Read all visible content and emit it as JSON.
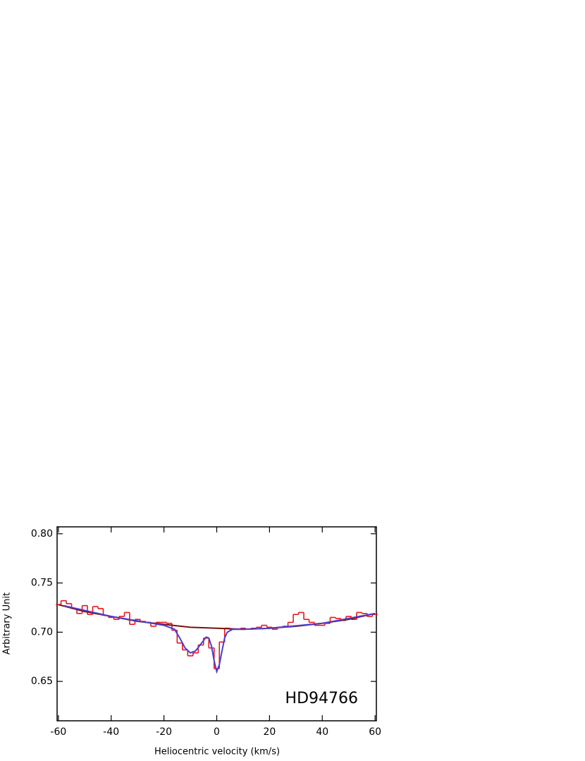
{
  "chart_data": {
    "type": "line",
    "xlabel": "Heliocentric velocity (km/s)",
    "ylabel": "Arbitrary Unit",
    "annotation": "HD94766",
    "xlim": [
      -60.5,
      60.5
    ],
    "ylim": [
      0.61,
      0.807
    ],
    "xticks": [
      -60,
      -40,
      -20,
      0,
      20,
      40,
      60
    ],
    "yticks": [
      {
        "value": 0.8,
        "label": "0.80"
      },
      0.75,
      {
        "value": 0.7,
        "label": "0.70"
      },
      0.65
    ],
    "series": [
      {
        "color": "#e8141c",
        "style": "step",
        "x": [
          -60,
          -58,
          -56,
          -54,
          -52,
          -50,
          -48,
          -46,
          -44,
          -42,
          -40,
          -38,
          -36,
          -34,
          -32,
          -30,
          -28,
          -26,
          -24,
          -22,
          -20,
          -18,
          -16,
          -14,
          -12,
          -10,
          -8,
          -6,
          -4,
          -2,
          0,
          2,
          4,
          6,
          8,
          10,
          12,
          14,
          16,
          18,
          20,
          22,
          24,
          26,
          28,
          30,
          32,
          34,
          36,
          38,
          40,
          42,
          44,
          46,
          48,
          50,
          52,
          54,
          56,
          58,
          60
        ],
        "values": [
          0.728,
          0.732,
          0.729,
          0.724,
          0.719,
          0.727,
          0.718,
          0.726,
          0.724,
          0.717,
          0.715,
          0.713,
          0.716,
          0.72,
          0.708,
          0.713,
          0.711,
          0.71,
          0.706,
          0.71,
          0.71,
          0.709,
          0.702,
          0.689,
          0.682,
          0.676,
          0.679,
          0.687,
          0.694,
          0.684,
          0.663,
          0.69,
          0.704,
          0.703,
          0.703,
          0.704,
          0.703,
          0.704,
          0.705,
          0.707,
          0.705,
          0.703,
          0.705,
          0.706,
          0.71,
          0.718,
          0.72,
          0.713,
          0.71,
          0.707,
          0.707,
          0.709,
          0.715,
          0.714,
          0.712,
          0.716,
          0.713,
          0.72,
          0.719,
          0.716,
          0.718
        ]
      },
      {
        "color": "#7a1010",
        "style": "line",
        "x": [
          -60,
          -50,
          -40,
          -30,
          -20,
          -10,
          0,
          10,
          20,
          30,
          40,
          50,
          60
        ],
        "values": [
          0.728,
          0.721,
          0.716,
          0.711,
          0.708,
          0.705,
          0.704,
          0.703,
          0.704,
          0.706,
          0.709,
          0.713,
          0.719
        ]
      },
      {
        "color": "#4a3fd0",
        "style": "line",
        "x": [
          -58,
          -40,
          -20,
          -16,
          -14,
          -12,
          -10,
          -8,
          -6,
          -4,
          -3,
          -2,
          -1,
          0,
          1,
          2,
          3,
          4,
          6,
          10,
          20,
          40,
          60
        ],
        "values": [
          0.727,
          0.716,
          0.707,
          0.703,
          0.694,
          0.684,
          0.679,
          0.681,
          0.688,
          0.695,
          0.694,
          0.686,
          0.671,
          0.66,
          0.667,
          0.681,
          0.694,
          0.7,
          0.703,
          0.703,
          0.704,
          0.709,
          0.719
        ]
      }
    ]
  }
}
